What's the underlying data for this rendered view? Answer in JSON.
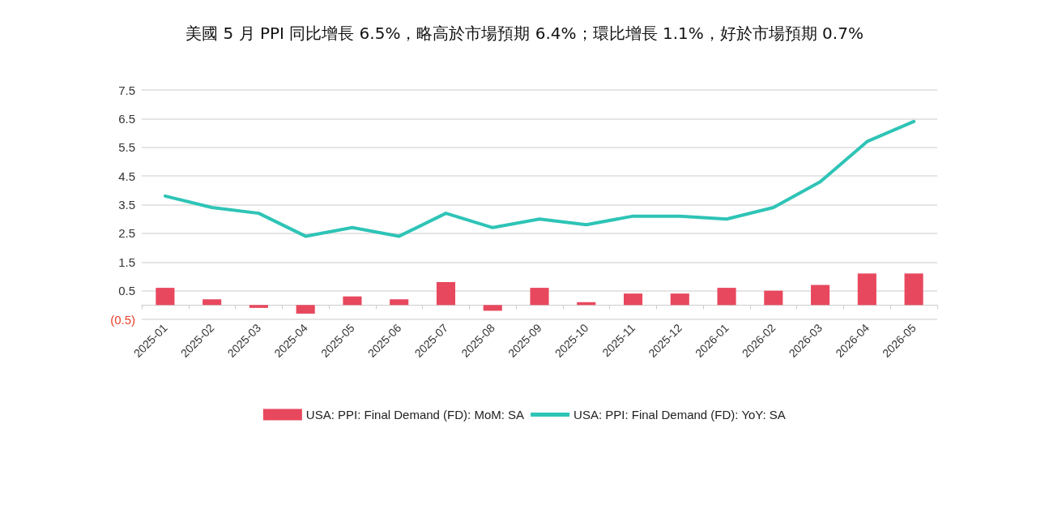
{
  "chart_data": {
    "type": "bar",
    "title": "美國 5 月 PPI 同比增長 6.5%，略高於市場預期 6.4%；環比增長 1.1%，好於市場預期 0.7%",
    "categories": [
      "2025-01",
      "2025-02",
      "2025-03",
      "2025-04",
      "2025-05",
      "2025-06",
      "2025-07",
      "2025-08",
      "2025-09",
      "2025-10",
      "2025-11",
      "2025-12",
      "2026-01",
      "2026-02",
      "2026-03",
      "2026-04",
      "2026-05"
    ],
    "series": [
      {
        "name": "USA: PPI: Final Demand (FD): MoM: SA",
        "color": "#e8485e",
        "values": [
          0.6,
          0.2,
          -0.1,
          -0.3,
          0.3,
          0.2,
          0.8,
          -0.2,
          0.6,
          0.1,
          0.4,
          0.4,
          0.6,
          0.5,
          0.7,
          1.1,
          1.1
        ]
      },
      {
        "name": "USA: PPI: Final Demand (FD): YoY: SA",
        "type": "line",
        "color": "#2ec4b6",
        "values": [
          3.8,
          3.4,
          3.2,
          2.4,
          2.7,
          2.4,
          3.2,
          2.7,
          3.0,
          2.8,
          3.1,
          3.1,
          3.0,
          3.4,
          4.3,
          5.7,
          6.4
        ]
      }
    ],
    "ylim": [
      -0.5,
      7.5
    ],
    "yticks": [
      {
        "value": -0.5,
        "label": "(0.5)"
      },
      0.5,
      1.5,
      2.5,
      3.5,
      4.5,
      5.5,
      6.5,
      7.5
    ],
    "grid": "y",
    "legend": "bottom",
    "marker": "none",
    "line_style": "solid"
  }
}
